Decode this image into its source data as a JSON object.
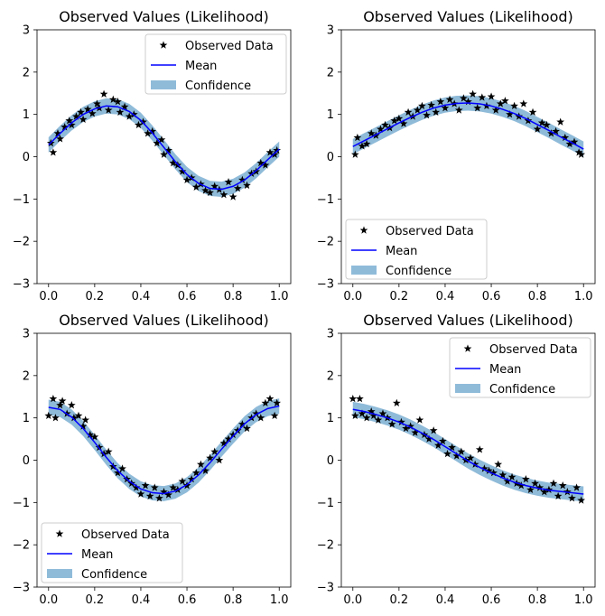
{
  "chart_data": [
    {
      "type": "line",
      "title": "Observed Values (Likelihood)",
      "xlabel": "",
      "ylabel": "",
      "xlim": [
        -0.05,
        1.05
      ],
      "ylim": [
        -3,
        3
      ],
      "xticks": [
        "0.0",
        "0.2",
        "0.4",
        "0.6",
        "0.8",
        "1.0"
      ],
      "yticks": [
        "3",
        "2",
        "1",
        "0",
        "−1",
        "−2",
        "−3"
      ],
      "legend": {
        "position": "top-right",
        "entries": [
          "Observed Data",
          "Mean",
          "Confidence"
        ]
      },
      "mean": {
        "x": [
          0.0,
          0.05,
          0.1,
          0.15,
          0.2,
          0.25,
          0.3,
          0.35,
          0.4,
          0.45,
          0.5,
          0.55,
          0.6,
          0.65,
          0.7,
          0.75,
          0.8,
          0.85,
          0.9,
          0.95,
          1.0
        ],
        "y": [
          0.28,
          0.55,
          0.8,
          1.0,
          1.13,
          1.2,
          1.18,
          1.07,
          0.86,
          0.56,
          0.22,
          -0.12,
          -0.42,
          -0.63,
          -0.75,
          -0.77,
          -0.7,
          -0.55,
          -0.33,
          -0.07,
          0.18
        ]
      },
      "confidence": {
        "lower_offset": -0.18,
        "upper_offset": 0.18
      },
      "observed": {
        "x": [
          0.01,
          0.02,
          0.04,
          0.05,
          0.07,
          0.09,
          0.1,
          0.12,
          0.14,
          0.15,
          0.17,
          0.19,
          0.21,
          0.22,
          0.24,
          0.26,
          0.28,
          0.3,
          0.31,
          0.33,
          0.35,
          0.37,
          0.39,
          0.41,
          0.43,
          0.45,
          0.47,
          0.49,
          0.5,
          0.52,
          0.54,
          0.56,
          0.58,
          0.6,
          0.62,
          0.64,
          0.66,
          0.68,
          0.7,
          0.72,
          0.74,
          0.76,
          0.78,
          0.8,
          0.82,
          0.84,
          0.86,
          0.88,
          0.9,
          0.92,
          0.94,
          0.96,
          0.98,
          0.99
        ],
        "y": [
          0.32,
          0.1,
          0.55,
          0.42,
          0.7,
          0.85,
          0.75,
          0.95,
          1.05,
          0.88,
          1.12,
          1.02,
          1.25,
          1.15,
          1.48,
          1.1,
          1.35,
          1.3,
          1.05,
          1.18,
          0.95,
          1.0,
          0.75,
          0.82,
          0.55,
          0.6,
          0.32,
          0.4,
          0.05,
          0.15,
          -0.15,
          -0.2,
          -0.35,
          -0.55,
          -0.5,
          -0.72,
          -0.65,
          -0.8,
          -0.85,
          -0.7,
          -0.78,
          -0.9,
          -0.6,
          -0.95,
          -0.75,
          -0.55,
          -0.68,
          -0.4,
          -0.35,
          -0.15,
          -0.2,
          0.1,
          0.05,
          0.15
        ]
      }
    },
    {
      "type": "line",
      "title": "Observed Values (Likelihood)",
      "xlabel": "",
      "ylabel": "",
      "xlim": [
        -0.05,
        1.05
      ],
      "ylim": [
        -3,
        3
      ],
      "xticks": [
        "0.0",
        "0.2",
        "0.4",
        "0.6",
        "0.8",
        "1.0"
      ],
      "yticks": [
        "3",
        "2",
        "1",
        "0",
        "−1",
        "−2",
        "−3"
      ],
      "legend": {
        "position": "bottom-left",
        "entries": [
          "Observed Data",
          "Mean",
          "Confidence"
        ]
      },
      "mean": {
        "x": [
          0.0,
          0.05,
          0.1,
          0.15,
          0.2,
          0.25,
          0.3,
          0.35,
          0.4,
          0.45,
          0.5,
          0.55,
          0.6,
          0.65,
          0.7,
          0.75,
          0.8,
          0.85,
          0.9,
          0.95,
          1.0
        ],
        "y": [
          0.24,
          0.38,
          0.52,
          0.66,
          0.8,
          0.93,
          1.05,
          1.15,
          1.22,
          1.26,
          1.27,
          1.25,
          1.2,
          1.12,
          1.02,
          0.9,
          0.76,
          0.62,
          0.47,
          0.33,
          0.18
        ]
      },
      "confidence": {
        "lower_offset": -0.18,
        "upper_offset": 0.18
      },
      "observed": {
        "x": [
          0.01,
          0.02,
          0.04,
          0.06,
          0.08,
          0.1,
          0.12,
          0.14,
          0.16,
          0.18,
          0.2,
          0.22,
          0.24,
          0.26,
          0.28,
          0.3,
          0.32,
          0.34,
          0.36,
          0.38,
          0.4,
          0.42,
          0.44,
          0.46,
          0.48,
          0.5,
          0.52,
          0.54,
          0.56,
          0.58,
          0.6,
          0.62,
          0.64,
          0.66,
          0.68,
          0.7,
          0.72,
          0.74,
          0.76,
          0.78,
          0.8,
          0.82,
          0.84,
          0.86,
          0.88,
          0.9,
          0.92,
          0.94,
          0.96,
          0.98,
          0.99
        ],
        "y": [
          0.05,
          0.45,
          0.25,
          0.3,
          0.55,
          0.5,
          0.65,
          0.75,
          0.68,
          0.85,
          0.9,
          0.78,
          1.05,
          0.95,
          1.1,
          1.2,
          0.98,
          1.22,
          1.05,
          1.3,
          1.15,
          1.35,
          1.25,
          1.1,
          1.38,
          1.3,
          1.48,
          1.15,
          1.4,
          1.2,
          1.42,
          1.1,
          1.25,
          1.32,
          1.0,
          1.2,
          0.95,
          1.25,
          0.85,
          1.05,
          0.65,
          0.8,
          0.75,
          0.55,
          0.6,
          0.82,
          0.45,
          0.3,
          0.35,
          0.1,
          0.05
        ]
      }
    },
    {
      "type": "line",
      "title": "Observed Values (Likelihood)",
      "xlabel": "",
      "ylabel": "",
      "xlim": [
        -0.05,
        1.05
      ],
      "ylim": [
        -3,
        3
      ],
      "xticks": [
        "0.0",
        "0.2",
        "0.4",
        "0.6",
        "0.8",
        "1.0"
      ],
      "yticks": [
        "3",
        "2",
        "1",
        "0",
        "−1",
        "−2",
        "−3"
      ],
      "legend": {
        "position": "bottom-left",
        "entries": [
          "Observed Data",
          "Mean",
          "Confidence"
        ]
      },
      "mean": {
        "x": [
          0.0,
          0.05,
          0.1,
          0.15,
          0.2,
          0.25,
          0.3,
          0.35,
          0.4,
          0.45,
          0.5,
          0.55,
          0.6,
          0.65,
          0.7,
          0.75,
          0.8,
          0.85,
          0.9,
          0.95,
          1.0
        ],
        "y": [
          1.25,
          1.2,
          1.02,
          0.75,
          0.42,
          0.07,
          -0.25,
          -0.5,
          -0.68,
          -0.77,
          -0.79,
          -0.73,
          -0.58,
          -0.35,
          -0.06,
          0.26,
          0.57,
          0.86,
          1.08,
          1.22,
          1.28
        ]
      },
      "confidence": {
        "lower_offset": -0.18,
        "upper_offset": 0.18
      },
      "observed": {
        "x": [
          0.0,
          0.02,
          0.03,
          0.05,
          0.06,
          0.08,
          0.1,
          0.11,
          0.13,
          0.15,
          0.16,
          0.18,
          0.2,
          0.22,
          0.24,
          0.26,
          0.28,
          0.3,
          0.32,
          0.34,
          0.36,
          0.38,
          0.4,
          0.42,
          0.44,
          0.46,
          0.48,
          0.5,
          0.52,
          0.54,
          0.56,
          0.58,
          0.6,
          0.62,
          0.64,
          0.66,
          0.68,
          0.7,
          0.72,
          0.74,
          0.76,
          0.78,
          0.8,
          0.82,
          0.84,
          0.86,
          0.88,
          0.9,
          0.92,
          0.94,
          0.96,
          0.98,
          0.99
        ],
        "y": [
          1.05,
          1.45,
          1.0,
          1.3,
          1.4,
          1.1,
          1.3,
          1.0,
          1.05,
          0.8,
          0.95,
          0.6,
          0.55,
          0.3,
          0.15,
          0.2,
          -0.15,
          -0.3,
          -0.2,
          -0.45,
          -0.55,
          -0.65,
          -0.8,
          -0.6,
          -0.85,
          -0.65,
          -0.9,
          -0.75,
          -0.82,
          -0.65,
          -0.7,
          -0.5,
          -0.6,
          -0.45,
          -0.3,
          -0.1,
          -0.25,
          0.05,
          0.2,
          0.0,
          0.4,
          0.5,
          0.6,
          0.7,
          0.85,
          0.75,
          1.0,
          1.1,
          1.0,
          1.35,
          1.45,
          1.05,
          1.35
        ]
      }
    },
    {
      "type": "line",
      "title": "Observed Values (Likelihood)",
      "xlabel": "",
      "ylabel": "",
      "xlim": [
        -0.05,
        1.05
      ],
      "ylim": [
        -3,
        3
      ],
      "xticks": [
        "0.0",
        "0.2",
        "0.4",
        "0.6",
        "0.8",
        "1.0"
      ],
      "yticks": [
        "3",
        "2",
        "1",
        "0",
        "−1",
        "−2",
        "−3"
      ],
      "legend": {
        "position": "top-right",
        "entries": [
          "Observed Data",
          "Mean",
          "Confidence"
        ]
      },
      "mean": {
        "x": [
          0.0,
          0.05,
          0.1,
          0.15,
          0.2,
          0.25,
          0.3,
          0.35,
          0.4,
          0.45,
          0.5,
          0.55,
          0.6,
          0.65,
          0.7,
          0.75,
          0.8,
          0.85,
          0.9,
          0.95,
          1.0
        ],
        "y": [
          1.2,
          1.15,
          1.08,
          1.0,
          0.9,
          0.78,
          0.64,
          0.49,
          0.32,
          0.15,
          -0.02,
          -0.17,
          -0.3,
          -0.42,
          -0.52,
          -0.6,
          -0.66,
          -0.71,
          -0.74,
          -0.77,
          -0.8
        ]
      },
      "confidence": {
        "lower_offset": -0.18,
        "upper_offset": 0.18
      },
      "observed": {
        "x": [
          0.0,
          0.01,
          0.03,
          0.04,
          0.06,
          0.08,
          0.09,
          0.11,
          0.13,
          0.15,
          0.17,
          0.19,
          0.21,
          0.23,
          0.25,
          0.27,
          0.29,
          0.31,
          0.33,
          0.35,
          0.37,
          0.39,
          0.41,
          0.43,
          0.45,
          0.47,
          0.49,
          0.51,
          0.53,
          0.55,
          0.57,
          0.59,
          0.61,
          0.63,
          0.65,
          0.67,
          0.69,
          0.71,
          0.73,
          0.75,
          0.77,
          0.79,
          0.81,
          0.83,
          0.85,
          0.87,
          0.89,
          0.91,
          0.93,
          0.95,
          0.97,
          0.99
        ],
        "y": [
          1.45,
          1.05,
          1.45,
          1.1,
          1.0,
          1.15,
          1.05,
          0.95,
          1.1,
          1.0,
          0.85,
          1.35,
          0.9,
          0.75,
          0.8,
          0.65,
          0.95,
          0.6,
          0.5,
          0.7,
          0.35,
          0.45,
          0.15,
          0.3,
          0.1,
          0.2,
          0.0,
          0.05,
          -0.1,
          0.25,
          -0.2,
          -0.25,
          -0.3,
          -0.1,
          -0.35,
          -0.5,
          -0.4,
          -0.55,
          -0.6,
          -0.45,
          -0.7,
          -0.55,
          -0.65,
          -0.75,
          -0.7,
          -0.55,
          -0.85,
          -0.6,
          -0.75,
          -0.9,
          -0.65,
          -0.95
        ]
      }
    }
  ]
}
